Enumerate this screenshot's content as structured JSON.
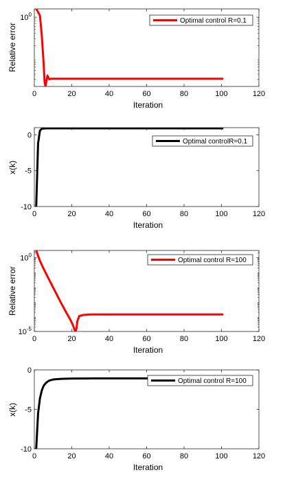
{
  "chart_data": [
    {
      "type": "line",
      "xlabel": "Iteration",
      "ylabel": "Relative error",
      "yscale": "log",
      "xlim": [
        0,
        120
      ],
      "ylim": [
        0.02,
        1.6
      ],
      "xticks": [
        0,
        20,
        40,
        60,
        80,
        100,
        120
      ],
      "xtick_labels": [
        "0",
        "20",
        "40",
        "60",
        "80",
        "100",
        "120"
      ],
      "yticks": [
        1
      ],
      "ytick_labels": [
        {
          "base": "10",
          "exp": "0"
        }
      ],
      "legend": {
        "position": "top-right",
        "entries": [
          "Optimal control R=0.1"
        ]
      },
      "grid": false,
      "series": [
        {
          "name": "Optimal control R=0.1",
          "color": "#ff0000",
          "x": [
            1,
            2,
            3,
            4,
            5,
            5.5,
            6,
            6.5,
            7,
            8,
            9,
            10,
            20,
            40,
            60,
            80,
            101
          ],
          "y": [
            1.6,
            1.35,
            1.1,
            0.35,
            0.07,
            0.025,
            0.02,
            0.028,
            0.037,
            0.03,
            0.031,
            0.031,
            0.031,
            0.031,
            0.031,
            0.031,
            0.031
          ]
        }
      ]
    },
    {
      "type": "line",
      "xlabel": "Iteration",
      "ylabel": "x(k)",
      "xlim": [
        0,
        120
      ],
      "ylim": [
        -10,
        1
      ],
      "xticks": [
        0,
        20,
        40,
        60,
        80,
        100,
        120
      ],
      "xtick_labels": [
        "0",
        "20",
        "40",
        "60",
        "80",
        "100",
        "120"
      ],
      "yticks": [
        -10,
        -5,
        0
      ],
      "ytick_labels": [
        "-10",
        "-5",
        "0"
      ],
      "legend": {
        "position": "top-right",
        "entries": [
          "Optimal controlR=0.1"
        ]
      },
      "grid": false,
      "series": [
        {
          "name": "Optimal controlR=0.1",
          "color": "#000000",
          "x": [
            1,
            2,
            3,
            4,
            6,
            10,
            20,
            40,
            60,
            80,
            101
          ],
          "y": [
            -10,
            -1.2,
            0.6,
            0.85,
            0.9,
            0.9,
            0.9,
            0.9,
            0.9,
            0.9,
            0.9
          ]
        }
      ]
    },
    {
      "type": "line",
      "xlabel": "Iteration",
      "ylabel": "Relative error",
      "yscale": "log",
      "xlim": [
        0,
        120
      ],
      "ylim": [
        1e-05,
        3
      ],
      "xticks": [
        0,
        20,
        40,
        60,
        80,
        100,
        120
      ],
      "xtick_labels": [
        "0",
        "20",
        "40",
        "60",
        "80",
        "100",
        "120"
      ],
      "yticks": [
        1e-05,
        1
      ],
      "ytick_labels": [
        {
          "base": "10",
          "exp": "-5"
        },
        {
          "base": "10",
          "exp": "0"
        }
      ],
      "legend": {
        "position": "top-right",
        "entries": [
          "Optimal control R=100"
        ]
      },
      "grid": false,
      "series": [
        {
          "name": "Optimal control R=100",
          "color": "#ff0000",
          "x": [
            1,
            2,
            3,
            5,
            8,
            11,
            14,
            17,
            19,
            20.5,
            21.5,
            22,
            22.5,
            23,
            24,
            26,
            30,
            40,
            60,
            80,
            101
          ],
          "y": [
            3,
            1.3,
            0.6,
            0.17,
            0.03,
            0.0055,
            0.001,
            0.0002,
            7e-05,
            3e-05,
            1.3e-05,
            1e-05,
            1.5e-05,
            5e-05,
            0.00011,
            0.00013,
            0.00014,
            0.00014,
            0.00014,
            0.00014,
            0.00014
          ]
        }
      ]
    },
    {
      "type": "line",
      "xlabel": "Iteration",
      "ylabel": "x(k)",
      "xlim": [
        0,
        120
      ],
      "ylim": [
        -10,
        0
      ],
      "xticks": [
        0,
        20,
        40,
        60,
        80,
        100,
        120
      ],
      "xtick_labels": [
        "0",
        "20",
        "40",
        "60",
        "80",
        "100",
        "120"
      ],
      "yticks": [
        -10,
        -5,
        0
      ],
      "ytick_labels": [
        "-10",
        "-5",
        "0"
      ],
      "legend": {
        "position": "top-right",
        "entries": [
          "Optimal control R=100"
        ]
      },
      "grid": false,
      "series": [
        {
          "name": "Optimal control R=100",
          "color": "#000000",
          "x": [
            1,
            2,
            3,
            4,
            5,
            6,
            7,
            8,
            10,
            12,
            15,
            20,
            30,
            40,
            60,
            80,
            101
          ],
          "y": [
            -10,
            -5.5,
            -3.6,
            -2.6,
            -2.0,
            -1.7,
            -1.5,
            -1.35,
            -1.22,
            -1.17,
            -1.13,
            -1.1,
            -1.08,
            -1.08,
            -1.08,
            -1.08,
            -1.08
          ]
        }
      ]
    }
  ]
}
